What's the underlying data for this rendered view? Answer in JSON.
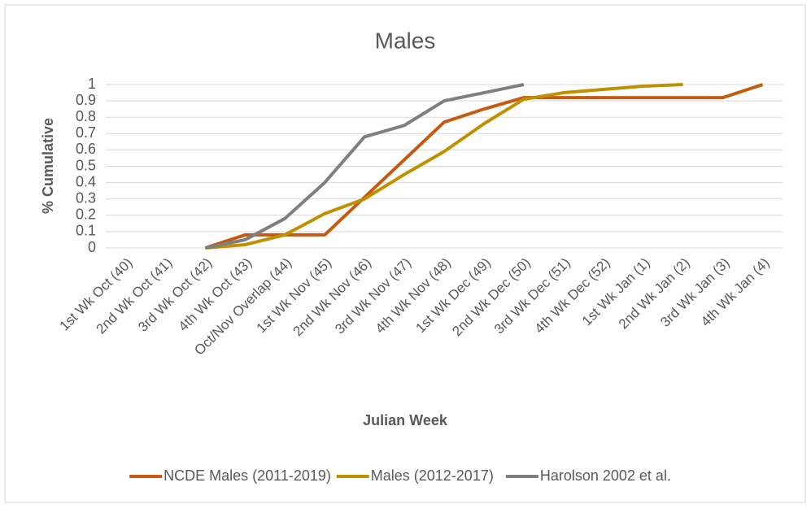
{
  "chart_data": {
    "type": "line",
    "title": "Males",
    "x_label": "Julian Week",
    "y_label": "% Cumulative",
    "categories": [
      "1st Wk Oct (40)",
      "2nd Wk Oct (41)",
      "3rd Wk Oct (42)",
      "4th Wk Oct (43)",
      "Oct/Nov Overlap (44)",
      "1st Wk Nov (45)",
      "2nd Wk Nov (46)",
      "3rd Wk Nov (47)",
      "4th Wk Nov (48)",
      "1st Wk Dec (49)",
      "2nd Wk Dec (50)",
      "3rd Wk Dec (51)",
      "4th Wk Dec (52)",
      "1st Wk Jan (1)",
      "2nd Wk Jan (2)",
      "3rd Wk Jan (3)",
      "4th Wk Jan (4)"
    ],
    "series": [
      {
        "name": "NCDE Males (2011-2019)",
        "color": "#c55a11",
        "values": [
          null,
          null,
          0,
          0.08,
          0.08,
          0.08,
          0.31,
          0.54,
          0.77,
          0.85,
          0.92,
          0.92,
          0.92,
          0.92,
          0.92,
          0.92,
          1
        ]
      },
      {
        "name": "Males (2012-2017)",
        "color": "#bf9000",
        "values": [
          null,
          null,
          0,
          0.02,
          0.08,
          0.21,
          0.3,
          0.45,
          0.59,
          0.76,
          0.91,
          0.95,
          0.97,
          0.99,
          1,
          null,
          null
        ]
      },
      {
        "name": "Harolson 2002 et al.",
        "color": "#7f7f7f",
        "values": [
          null,
          null,
          0,
          0.05,
          0.18,
          0.4,
          0.68,
          0.75,
          0.9,
          0.95,
          1,
          null,
          null,
          null,
          null,
          null,
          null
        ]
      }
    ],
    "ylim": [
      0,
      1
    ],
    "yticks": [
      0,
      0.1,
      0.2,
      0.3,
      0.4,
      0.5,
      0.6,
      0.7,
      0.8,
      0.9,
      1
    ],
    "grid": true,
    "legend": "bottom"
  }
}
